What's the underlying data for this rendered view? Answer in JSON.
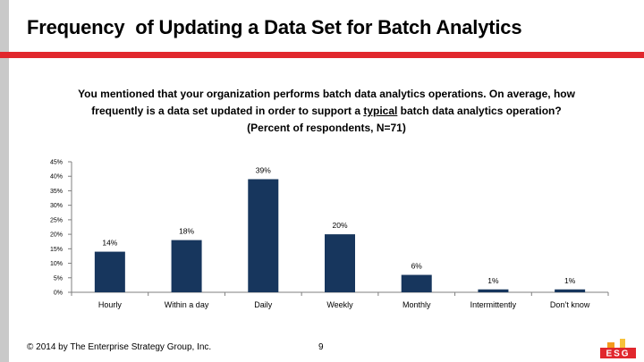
{
  "slide": {
    "title": "Frequency  of Updating a Data Set for Batch Analytics",
    "question_part1": "You mentioned that your organization performs batch data analytics operations. On average, how frequently is a data set updated in order to support a ",
    "question_underlined": "typical",
    "question_part2": " batch data analytics operation? (Percent of respondents, N=71)",
    "accent_color": "#e1272d",
    "footer_copyright": "© 2014 by The Enterprise Strategy Group, Inc.",
    "page_number": "9",
    "logo_text": "ESG"
  },
  "chart_data": {
    "type": "bar",
    "categories": [
      "Hourly",
      "Within a day",
      "Daily",
      "Weekly",
      "Monthly",
      "Intermittently",
      "Don’t know"
    ],
    "values": [
      14,
      18,
      39,
      20,
      6,
      1,
      1
    ],
    "value_labels": [
      "14%",
      "18%",
      "39%",
      "20%",
      "6%",
      "1%",
      "1%"
    ],
    "ylim": [
      0,
      45
    ],
    "ytick_values": [
      0,
      5,
      10,
      15,
      20,
      25,
      30,
      35,
      40,
      45
    ],
    "ytick_labels": [
      "0%",
      "5%",
      "10%",
      "15%",
      "20%",
      "25%",
      "30%",
      "35%",
      "40%",
      "45%"
    ],
    "bar_color": "#17365d",
    "grid": false,
    "legend": "none"
  }
}
